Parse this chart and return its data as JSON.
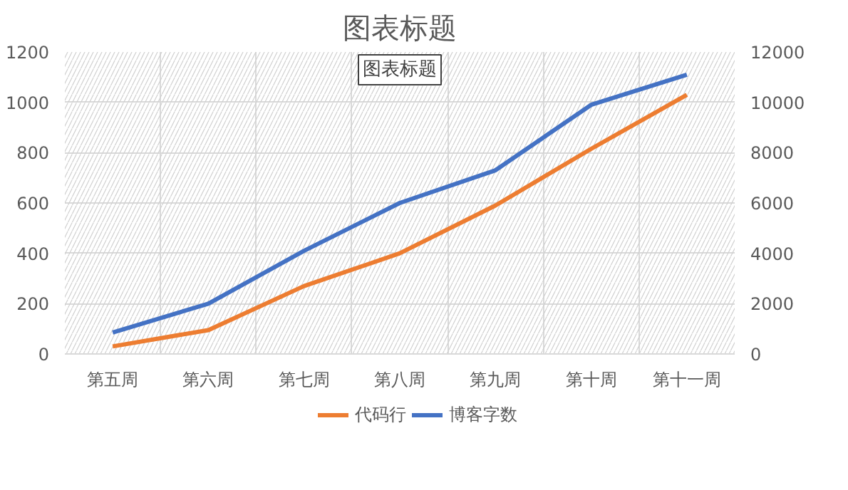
{
  "chart_data": {
    "type": "line",
    "title": "图表标题",
    "annotations": [
      "图表标题"
    ],
    "categories": [
      "第五周",
      "第六周",
      "第七周",
      "第八周",
      "第九周",
      "第十周",
      "第十一周"
    ],
    "series": [
      {
        "name": "代码行",
        "color": "#ed7d31",
        "values": [
          30,
          95,
          270,
          400,
          590,
          815,
          1030
        ]
      },
      {
        "name": "博客字数",
        "color": "#4472c4",
        "axis": "y2",
        "values": [
          850,
          2000,
          4100,
          6000,
          7300,
          9900,
          11100
        ]
      }
    ],
    "ylim": [
      0,
      1200
    ],
    "yticks": [
      0,
      200,
      400,
      600,
      800,
      1000,
      1200
    ],
    "y2lim": [
      0,
      12000
    ],
    "y2ticks": [
      0,
      2000,
      4000,
      6000,
      8000,
      10000,
      12000
    ],
    "grid": true,
    "legend": "bottom",
    "marker": "none",
    "line_style": "solid"
  }
}
